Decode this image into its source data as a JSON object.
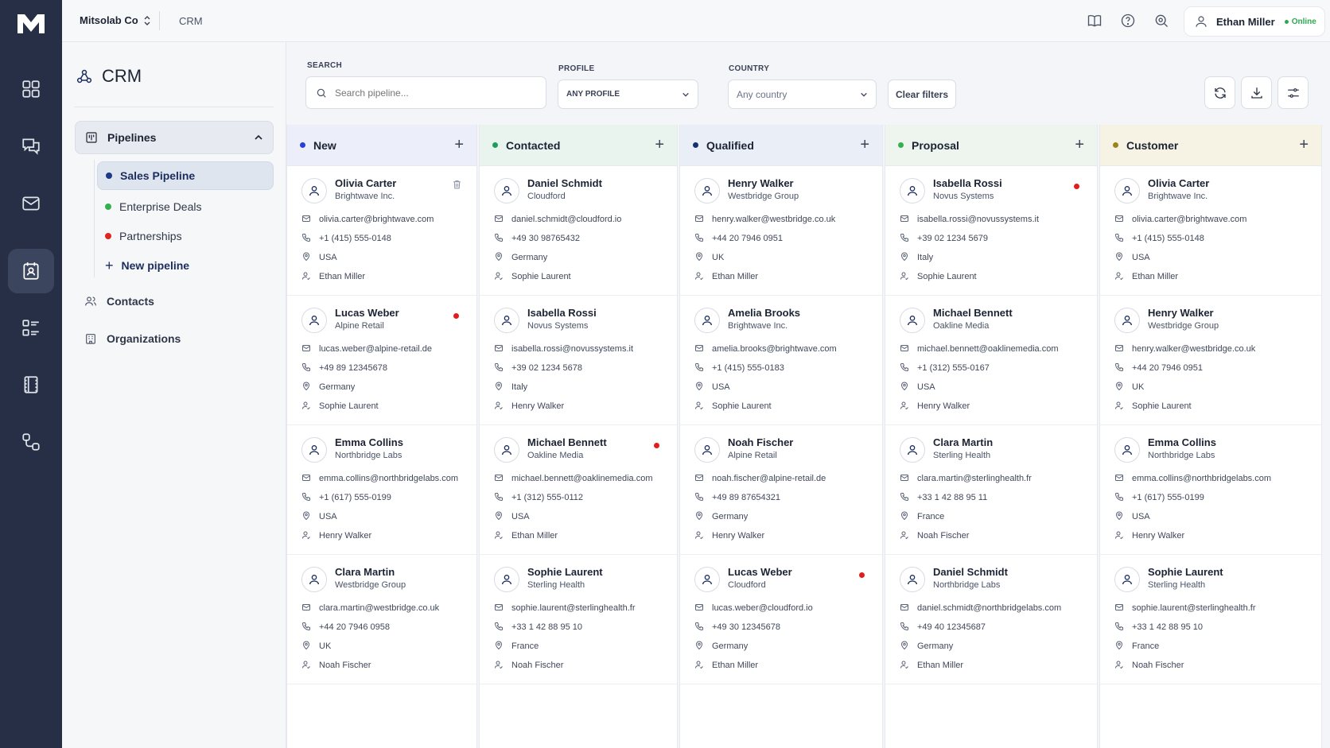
{
  "app": {
    "org_name": "Mitsolab Co",
    "breadcrumb": "CRM"
  },
  "user": {
    "name": "Ethan Miller",
    "status": "Online"
  },
  "nav": {
    "title": "CRM",
    "pipelines_label": "Pipelines",
    "pipelines": [
      {
        "label": "Sales Pipeline",
        "color": "#1d3a8a",
        "active": true
      },
      {
        "label": "Enterprise Deals",
        "color": "#35b04f",
        "active": false
      },
      {
        "label": "Partnerships",
        "color": "#e0241f",
        "active": false
      }
    ],
    "new_pipeline": "New pipeline",
    "contacts": "Contacts",
    "organizations": "Organizations"
  },
  "filters": {
    "search_label": "SEARCH",
    "search_placeholder": "Search pipeline...",
    "profile_label": "PROFILE",
    "profile_value": "ANY PROFILE",
    "country_label": "COUNTRY",
    "country_value": "Any country",
    "clear": "Clear filters"
  },
  "columns": [
    {
      "title": "New",
      "color": "#2a3fd8",
      "header_bg": "#eceffa",
      "cards": [
        {
          "name": "Olivia Carter",
          "company": "Brightwave Inc.",
          "email": "olivia.carter@brightwave.com",
          "phone": "+1 (415) 555-0148",
          "country": "USA",
          "owner": "Ethan Miller",
          "flag": false,
          "trash": true
        },
        {
          "name": "Lucas Weber",
          "company": "Alpine Retail",
          "email": "lucas.weber@alpine-retail.de",
          "phone": "+49 89 12345678",
          "country": "Germany",
          "owner": "Sophie Laurent",
          "flag": true
        },
        {
          "name": "Emma Collins",
          "company": "Northbridge Labs",
          "email": "emma.collins@northbridgelabs.com",
          "phone": "+1 (617) 555-0199",
          "country": "USA",
          "owner": "Henry Walker",
          "flag": false
        },
        {
          "name": "Clara Martin",
          "company": "Westbridge Group",
          "email": "clara.martin@westbridge.co.uk",
          "phone": "+44 20 7946 0958",
          "country": "UK",
          "owner": "Noah Fischer",
          "flag": false
        }
      ]
    },
    {
      "title": "Contacted",
      "color": "#1f9e5a",
      "header_bg": "#eaf4ef",
      "cards": [
        {
          "name": "Daniel Schmidt",
          "company": "Cloudford",
          "email": "daniel.schmidt@cloudford.io",
          "phone": "+49 30 98765432",
          "country": "Germany",
          "owner": "Sophie Laurent",
          "flag": false
        },
        {
          "name": "Isabella Rossi",
          "company": "Novus Systems",
          "email": "isabella.rossi@novussystems.it",
          "phone": "+39 02 1234 5678",
          "country": "Italy",
          "owner": "Henry Walker",
          "flag": false
        },
        {
          "name": "Michael Bennett",
          "company": "Oakline Media",
          "email": "michael.bennett@oaklinemedia.com",
          "phone": "+1 (312) 555-0112",
          "country": "USA",
          "owner": "Ethan Miller",
          "flag": true
        },
        {
          "name": "Sophie Laurent",
          "company": "Sterling Health",
          "email": "sophie.laurent@sterlinghealth.fr",
          "phone": "+33 1 42 88 95 10",
          "country": "France",
          "owner": "Noah Fischer",
          "flag": false
        }
      ]
    },
    {
      "title": "Qualified",
      "color": "#16306e",
      "header_bg": "#e9eef7",
      "cards": [
        {
          "name": "Henry Walker",
          "company": "Westbridge Group",
          "email": "henry.walker@westbridge.co.uk",
          "phone": "+44 20 7946 0951",
          "country": "UK",
          "owner": "Ethan Miller",
          "flag": false
        },
        {
          "name": "Amelia Brooks",
          "company": "Brightwave Inc.",
          "email": "amelia.brooks@brightwave.com",
          "phone": "+1 (415) 555-0183",
          "country": "USA",
          "owner": "Sophie Laurent",
          "flag": false
        },
        {
          "name": "Noah Fischer",
          "company": "Alpine Retail",
          "email": "noah.fischer@alpine-retail.de",
          "phone": "+49 89 87654321",
          "country": "Germany",
          "owner": "Henry Walker",
          "flag": false
        },
        {
          "name": "Lucas Weber",
          "company": "Cloudford",
          "email": "lucas.weber@cloudford.io",
          "phone": "+49 30 12345678",
          "country": "Germany",
          "owner": "Ethan Miller",
          "flag": true
        }
      ]
    },
    {
      "title": "Proposal",
      "color": "#35b04f",
      "header_bg": "#edf5ee",
      "cards": [
        {
          "name": "Isabella Rossi",
          "company": "Novus Systems",
          "email": "isabella.rossi@novussystems.it",
          "phone": "+39 02 1234 5679",
          "country": "Italy",
          "owner": "Sophie Laurent",
          "flag": true
        },
        {
          "name": "Michael Bennett",
          "company": "Oakline Media",
          "email": "michael.bennett@oaklinemedia.com",
          "phone": "+1 (312) 555-0167",
          "country": "USA",
          "owner": "Henry Walker",
          "flag": false
        },
        {
          "name": "Clara Martin",
          "company": "Sterling Health",
          "email": "clara.martin@sterlinghealth.fr",
          "phone": "+33 1 42 88 95 11",
          "country": "France",
          "owner": "Noah Fischer",
          "flag": false
        },
        {
          "name": "Daniel Schmidt",
          "company": "Northbridge Labs",
          "email": "daniel.schmidt@northbridgelabs.com",
          "phone": "+49 40 12345687",
          "country": "Germany",
          "owner": "Ethan Miller",
          "flag": false
        }
      ]
    },
    {
      "title": "Customer",
      "color": "#9a8420",
      "header_bg": "#f7f3e4",
      "cards": [
        {
          "name": "Olivia Carter",
          "company": "Brightwave Inc.",
          "email": "olivia.carter@brightwave.com",
          "phone": "+1 (415) 555-0148",
          "country": "USA",
          "owner": "Ethan Miller",
          "flag": false
        },
        {
          "name": "Henry Walker",
          "company": "Westbridge Group",
          "email": "henry.walker@westbridge.co.uk",
          "phone": "+44 20 7946 0951",
          "country": "UK",
          "owner": "Sophie Laurent",
          "flag": false
        },
        {
          "name": "Emma Collins",
          "company": "Northbridge Labs",
          "email": "emma.collins@northbridgelabs.com",
          "phone": "+1 (617) 555-0199",
          "country": "USA",
          "owner": "Henry Walker",
          "flag": false
        },
        {
          "name": "Sophie Laurent",
          "company": "Sterling Health",
          "email": "sophie.laurent@sterlinghealth.fr",
          "phone": "+33 1 42 88 95 10",
          "country": "France",
          "owner": "Noah Fischer",
          "flag": false
        }
      ]
    }
  ]
}
